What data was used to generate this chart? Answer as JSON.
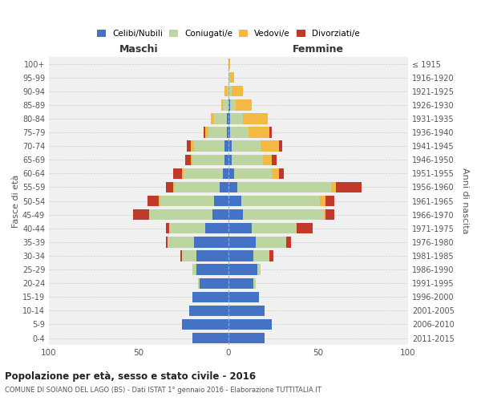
{
  "age_groups_bottom_to_top": [
    "0-4",
    "5-9",
    "10-14",
    "15-19",
    "20-24",
    "25-29",
    "30-34",
    "35-39",
    "40-44",
    "45-49",
    "50-54",
    "55-59",
    "60-64",
    "65-69",
    "70-74",
    "75-79",
    "80-84",
    "85-89",
    "90-94",
    "95-99",
    "100+"
  ],
  "birth_years_bottom_to_top": [
    "2011-2015",
    "2006-2010",
    "2001-2005",
    "1996-2000",
    "1991-1995",
    "1986-1990",
    "1981-1985",
    "1976-1980",
    "1971-1975",
    "1966-1970",
    "1961-1965",
    "1956-1960",
    "1951-1955",
    "1946-1950",
    "1941-1945",
    "1936-1940",
    "1931-1935",
    "1926-1930",
    "1921-1925",
    "1916-1920",
    "≤ 1915"
  ],
  "colors": {
    "celibi": "#4472c4",
    "coniugati": "#bdd5a0",
    "vedovi": "#f4b942",
    "divorziati": "#c0392b"
  },
  "males": {
    "celibi": [
      20,
      26,
      22,
      20,
      16,
      18,
      18,
      19,
      13,
      9,
      8,
      5,
      3,
      2,
      2,
      1,
      1,
      0,
      0,
      0,
      0
    ],
    "coniugati": [
      0,
      0,
      0,
      0,
      1,
      2,
      8,
      15,
      20,
      35,
      30,
      25,
      22,
      18,
      17,
      10,
      7,
      3,
      1,
      0,
      0
    ],
    "vedovi": [
      0,
      0,
      0,
      0,
      0,
      0,
      0,
      0,
      0,
      0,
      1,
      1,
      1,
      1,
      2,
      2,
      2,
      1,
      1,
      0,
      0
    ],
    "divorziati": [
      0,
      0,
      0,
      0,
      0,
      0,
      1,
      1,
      2,
      9,
      6,
      4,
      5,
      3,
      2,
      1,
      0,
      0,
      0,
      0,
      0
    ]
  },
  "females": {
    "nubili": [
      20,
      24,
      20,
      17,
      14,
      16,
      14,
      15,
      13,
      8,
      7,
      5,
      3,
      2,
      2,
      1,
      1,
      1,
      0,
      0,
      0
    ],
    "coniugate": [
      0,
      0,
      0,
      0,
      1,
      2,
      9,
      17,
      25,
      45,
      44,
      52,
      21,
      17,
      16,
      10,
      7,
      3,
      2,
      1,
      0
    ],
    "vedove": [
      0,
      0,
      0,
      0,
      0,
      0,
      0,
      0,
      0,
      1,
      3,
      3,
      4,
      5,
      10,
      12,
      14,
      9,
      6,
      2,
      1
    ],
    "divorziate": [
      0,
      0,
      0,
      0,
      0,
      0,
      2,
      3,
      9,
      5,
      5,
      14,
      3,
      3,
      2,
      1,
      0,
      0,
      0,
      0,
      0
    ]
  },
  "xlim": 100,
  "title": "Popolazione per età, sesso e stato civile - 2016",
  "subtitle": "COMUNE DI SOIANO DEL LAGO (BS) - Dati ISTAT 1° gennaio 2016 - Elaborazione TUTTITALIA.IT",
  "ylabel_left": "Fasce di età",
  "ylabel_right": "Anni di nascita",
  "xlabel_left": "Maschi",
  "xlabel_right": "Femmine",
  "bg_color": "#f0f0f0",
  "grid_color": "#cccccc"
}
